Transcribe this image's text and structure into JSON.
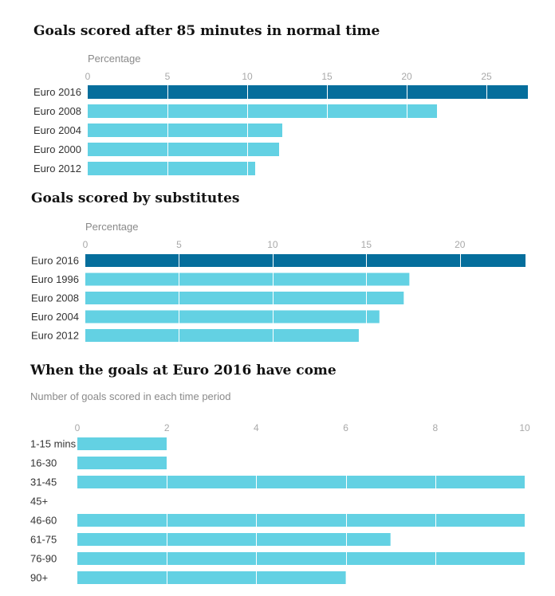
{
  "chart_data": [
    {
      "type": "bar",
      "orientation": "horizontal",
      "title": "Goals scored after 85 minutes in normal time",
      "subtitle": "Percentage",
      "categories": [
        "Euro 2016",
        "Euro 2008",
        "Euro 2004",
        "Euro 2000",
        "Euro 2012"
      ],
      "values": [
        27.6,
        21.9,
        12.2,
        12.0,
        10.5
      ],
      "highlight": [
        "Euro 2016"
      ],
      "xticks": [
        0,
        5,
        10,
        15,
        20,
        25
      ],
      "xlim": [
        0,
        27.6
      ],
      "grid": true
    },
    {
      "type": "bar",
      "orientation": "horizontal",
      "title": "Goals scored by substitutes",
      "subtitle": "Percentage",
      "categories": [
        "Euro 2016",
        "Euro 1996",
        "Euro 2008",
        "Euro 2004",
        "Euro 2012"
      ],
      "values": [
        23.5,
        17.3,
        17.0,
        15.7,
        14.6
      ],
      "highlight": [
        "Euro 2016"
      ],
      "xticks": [
        0,
        5,
        10,
        15,
        20
      ],
      "xlim": [
        0,
        23.5
      ],
      "grid": true
    },
    {
      "type": "bar",
      "orientation": "horizontal",
      "title": "When the goals at Euro 2016 have come",
      "subtitle": "Number of goals scored in each time period",
      "categories": [
        "1-15 mins",
        "16-30",
        "31-45",
        "45+",
        "46-60",
        "61-75",
        "76-90",
        "90+"
      ],
      "values": [
        2,
        2,
        10,
        0,
        10,
        7,
        10,
        6
      ],
      "highlight": [],
      "xticks": [
        0,
        2,
        4,
        6,
        8,
        10
      ],
      "xlim": [
        0,
        10
      ],
      "grid": true
    }
  ],
  "colors": {
    "highlight": "#056e9c",
    "bar": "#63d1e3",
    "grid": "#ffffff"
  }
}
